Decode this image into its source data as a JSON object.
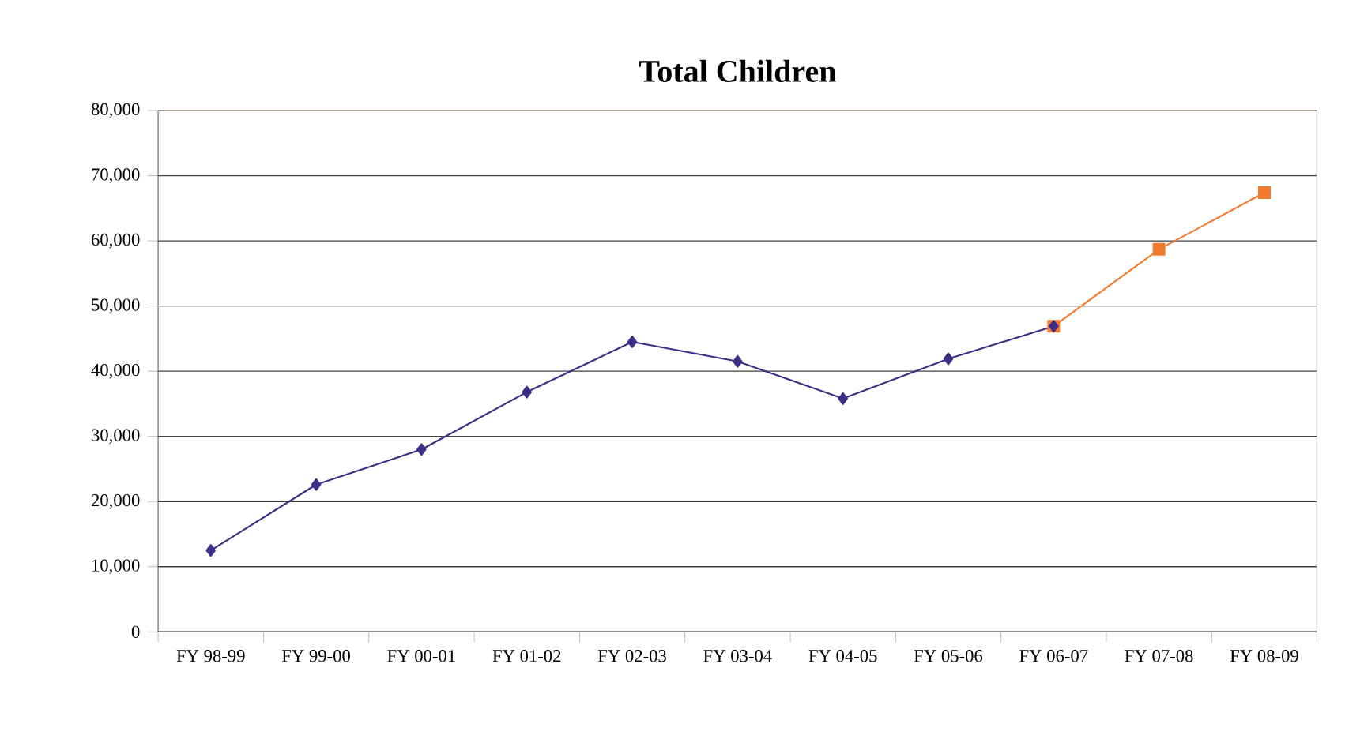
{
  "chart_data": {
    "type": "line",
    "title": "Total Children",
    "categories": [
      "FY 98-99",
      "FY 99-00",
      "FY 00-01",
      "FY 01-02",
      "FY 02-03",
      "FY 03-04",
      "FY 04-05",
      "FY 05-06",
      "FY 06-07",
      "FY 07-08",
      "FY 08-09"
    ],
    "series": [
      {
        "color": "#f47a30",
        "marker": "square",
        "values": [
          null,
          null,
          null,
          null,
          null,
          null,
          null,
          null,
          46900,
          58700,
          67400
        ]
      },
      {
        "color": "#3b2f86",
        "marker": "diamond",
        "values": [
          12500,
          22600,
          28000,
          36800,
          44500,
          41500,
          35800,
          41900,
          46900,
          null,
          null
        ]
      }
    ],
    "ylim": [
      0,
      80000
    ],
    "yticks": [
      0,
      {
        "value": 10000,
        "label": "10,000"
      },
      {
        "value": 20000,
        "label": "20,000"
      },
      {
        "value": 30000,
        "label": "30,000"
      },
      {
        "value": 40000,
        "label": "40,000"
      },
      {
        "value": 50000,
        "label": "50,000"
      },
      {
        "value": 60000,
        "label": "60,000"
      },
      {
        "value": 70000,
        "label": "70,000"
      },
      {
        "value": 80000,
        "label": "80,000"
      }
    ],
    "grid": "y",
    "line_style": "solid"
  }
}
